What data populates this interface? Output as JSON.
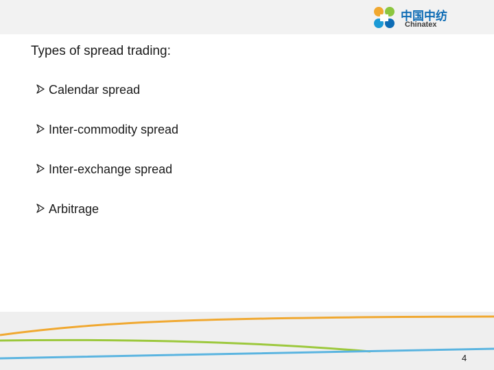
{
  "header": {
    "logo": {
      "cn_text": "中国中纺",
      "en_text": "Chinatex"
    }
  },
  "slide": {
    "title": "Types of spread trading:",
    "bullets": [
      "Calendar spread",
      "Inter-commodity spread",
      "Inter-exchange spread",
      "Arbitrage"
    ],
    "bullet_icon": "arrow-bullet-icon",
    "page_number": "4"
  },
  "colors": {
    "header_band": "#f2f2f2",
    "footer_band": "#efefef",
    "swoosh_orange": "#f0a830",
    "swoosh_green": "#9cc83c",
    "swoosh_blue": "#5ab4e0",
    "logo_blue": "#0e6cb5"
  }
}
